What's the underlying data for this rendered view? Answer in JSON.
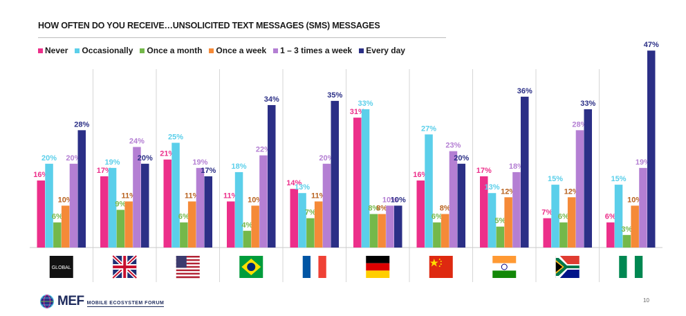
{
  "chart_data": {
    "type": "bar",
    "title": "HOW OFTEN DO YOU RECEIVE…UNSOLICITED TEXT MESSAGES (SMS) MESSAGES",
    "categories": [
      "GLOBAL",
      "UK",
      "USA",
      "Brazil",
      "France",
      "Germany",
      "China",
      "India",
      "South Africa",
      "Nigeria"
    ],
    "series": [
      {
        "name": "Never",
        "color": "#ec2f8a",
        "values": [
          16,
          17,
          21,
          11,
          14,
          31,
          16,
          17,
          7,
          6
        ]
      },
      {
        "name": "Occasionally",
        "color": "#5bcfea",
        "values": [
          20,
          19,
          25,
          18,
          13,
          33,
          27,
          13,
          15,
          15
        ]
      },
      {
        "name": "Once a month",
        "color": "#74b84a",
        "values": [
          6,
          9,
          6,
          4,
          7,
          8,
          6,
          5,
          6,
          3
        ]
      },
      {
        "name": "Once a week",
        "color": "#f58a38",
        "values": [
          10,
          11,
          11,
          10,
          11,
          8,
          8,
          12,
          12,
          10
        ]
      },
      {
        "name": "1 – 3 times a week",
        "color": "#b47fd3",
        "values": [
          20,
          24,
          19,
          22,
          20,
          10,
          23,
          18,
          28,
          19
        ]
      },
      {
        "name": "Every day",
        "color": "#2b2f86",
        "values": [
          28,
          20,
          17,
          34,
          35,
          10,
          20,
          36,
          33,
          47
        ]
      }
    ],
    "label_colors": [
      "#ec2f8a",
      "#5bcfea",
      "#74b84a",
      "#b8621f",
      "#b47fd3",
      "#2b2f86"
    ],
    "value_suffix": "%",
    "ylim": [
      0,
      50
    ],
    "legend_position": "top-left",
    "grid": false
  },
  "footer": {
    "brand": "MEF",
    "tagline": "MOBILE ECOSYSTEM FORUM",
    "page_number": "10"
  }
}
